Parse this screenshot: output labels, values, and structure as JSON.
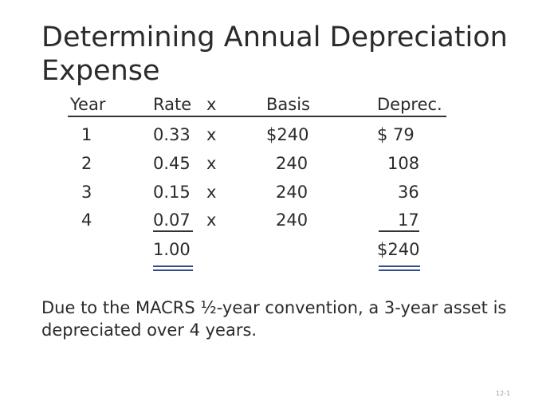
{
  "title": "Determining Annual Depreciation Expense",
  "table": {
    "headers": {
      "year": "Year",
      "rate": "Rate",
      "times": "x",
      "basis": "Basis",
      "deprec": "Deprec."
    },
    "rows": [
      {
        "year": "1",
        "rate": "0.33",
        "times": "x",
        "basis": "$240",
        "deprec": "$  79"
      },
      {
        "year": "2",
        "rate": "0.45",
        "times": "x",
        "basis": "240",
        "deprec": "108"
      },
      {
        "year": "3",
        "rate": "0.15",
        "times": "x",
        "basis": "240",
        "deprec": "36"
      },
      {
        "year": "4",
        "rate": "0.07",
        "times": "x",
        "basis": "240",
        "deprec": "17"
      }
    ],
    "totals": {
      "rate": "1.00",
      "deprec": "$240"
    }
  },
  "note": "Due to the MACRS ½-year convention, a 3-year asset is depreciated over 4 years.",
  "slide_number": "12-1",
  "colors": {
    "text": "#2b2b2b",
    "double_underline": "#2f4d8f"
  }
}
